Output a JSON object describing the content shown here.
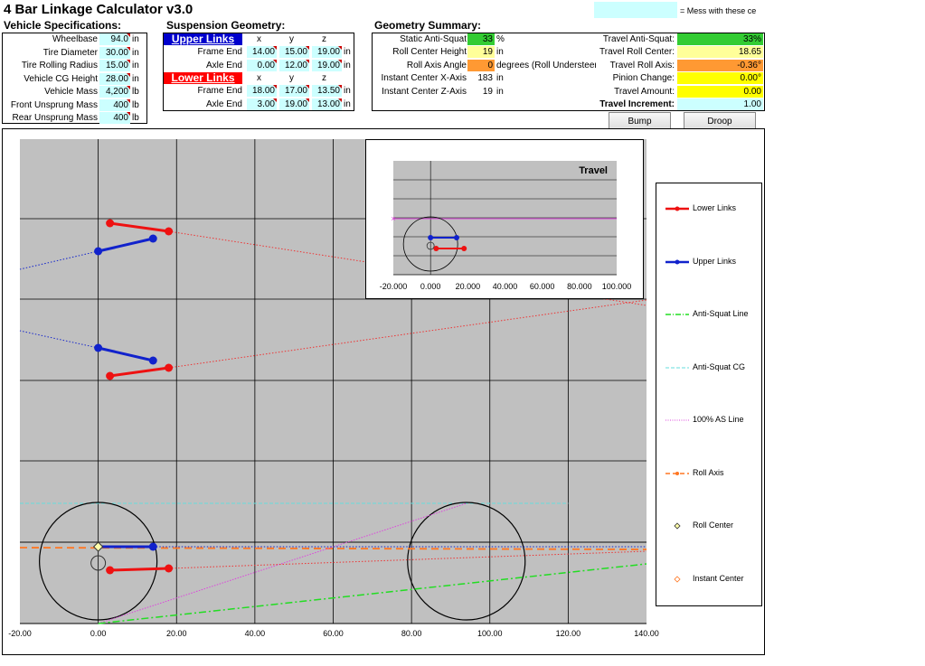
{
  "app_title": "4 Bar Linkage Calculator v3.0",
  "mess_note": "= Mess with these ce",
  "vehicle": {
    "heading": "Vehicle Specifications:",
    "rows": [
      {
        "label": "Wheelbase",
        "value": "94.0",
        "unit": "in"
      },
      {
        "label": "Tire Diameter",
        "value": "30.00",
        "unit": "in"
      },
      {
        "label": "Tire Rolling Radius",
        "value": "15.00",
        "unit": "in"
      },
      {
        "label": "Vehicle CG Height",
        "value": "28.00",
        "unit": "in"
      },
      {
        "label": "Vehicle Mass",
        "value": "4,200",
        "unit": "lb"
      },
      {
        "label": "Front Unsprung Mass",
        "value": "400",
        "unit": "lb"
      },
      {
        "label": "Rear Unsprung Mass",
        "value": "400",
        "unit": "lb"
      }
    ]
  },
  "geometry": {
    "heading": "Suspension Geometry:",
    "upper_label": "Upper Links",
    "lower_label": "Lower Links",
    "col_x": "x",
    "col_y": "y",
    "col_z": "z",
    "unit": "in",
    "upper": [
      {
        "label": "Frame End",
        "x": "14.00",
        "y": "15.00",
        "z": "19.00"
      },
      {
        "label": "Axle End",
        "x": "0.00",
        "y": "12.00",
        "z": "19.00"
      }
    ],
    "lower": [
      {
        "label": "Frame End",
        "x": "18.00",
        "y": "17.00",
        "z": "13.50"
      },
      {
        "label": "Axle End",
        "x": "3.00",
        "y": "19.00",
        "z": "13.00"
      }
    ]
  },
  "summary": {
    "heading": "Geometry Summary:",
    "static_anti_squat_label": "Static Anti-Squat",
    "static_anti_squat": "33",
    "static_anti_squat_unit": "%",
    "roll_center_height_label": "Roll Center Height",
    "roll_center_height": "19",
    "roll_center_height_unit": "in",
    "roll_axis_angle_label": "Roll Axis Angle",
    "roll_axis_angle": "0",
    "roll_axis_angle_unit": "degrees (Roll Understeer",
    "ic_x_label": "Instant Center X-Axis",
    "ic_x": "183",
    "ic_x_unit": "in",
    "ic_z_label": "Instant Center Z-Axis",
    "ic_z": "19",
    "ic_z_unit": "in",
    "travel_anti_squat_label": "Travel Anti-Squat:",
    "travel_anti_squat": "33%",
    "travel_roll_center_label": "Travel Roll Center:",
    "travel_roll_center": "18.65",
    "travel_roll_axis_label": "Travel Roll Axis:",
    "travel_roll_axis": "-0.36°",
    "pinion_change_label": "Pinion Change:",
    "pinion_change": "0.00°",
    "travel_amount_label": "Travel Amount:",
    "travel_amount": "0.00",
    "travel_increment_label": "Travel Increment:",
    "travel_increment": "1.00"
  },
  "buttons": {
    "bump": "Bump",
    "droop": "Droop"
  },
  "colors": {
    "plot_bg": "#c0c0c0",
    "lower_links": "#ee1111",
    "upper_links": "#1122cc",
    "anti_squat": "#22dd22",
    "anti_squat_cg": "#66dddd",
    "as100": "#dd44dd",
    "roll_axis": "#ff7722"
  },
  "main_chart": {
    "x_ticks": [
      "-20.00",
      "0.00",
      "20.00",
      "40.00",
      "60.00",
      "80.00",
      "100.00",
      "120.00",
      "140.00"
    ]
  },
  "inset_chart": {
    "title": "Travel",
    "x_ticks": [
      "-20.000",
      "0.000",
      "20.000",
      "40.000",
      "60.000",
      "80.000",
      "100.000"
    ]
  },
  "legend": [
    {
      "label": "Lower Links",
      "icon": "red-line-marker"
    },
    {
      "label": "Upper Links",
      "icon": "blue-line-marker"
    },
    {
      "label": "Anti-Squat Line",
      "icon": "green-dashdot-line"
    },
    {
      "label": "Anti-Squat CG",
      "icon": "cyan-dashed-line"
    },
    {
      "label": "100% AS Line",
      "icon": "magenta-dotted-line"
    },
    {
      "label": "Roll Axis",
      "icon": "orange-dashed-line"
    },
    {
      "label": "Roll Center",
      "icon": "diamond-marker"
    },
    {
      "label": "Instant Center",
      "icon": "orange-diamond-marker"
    }
  ]
}
